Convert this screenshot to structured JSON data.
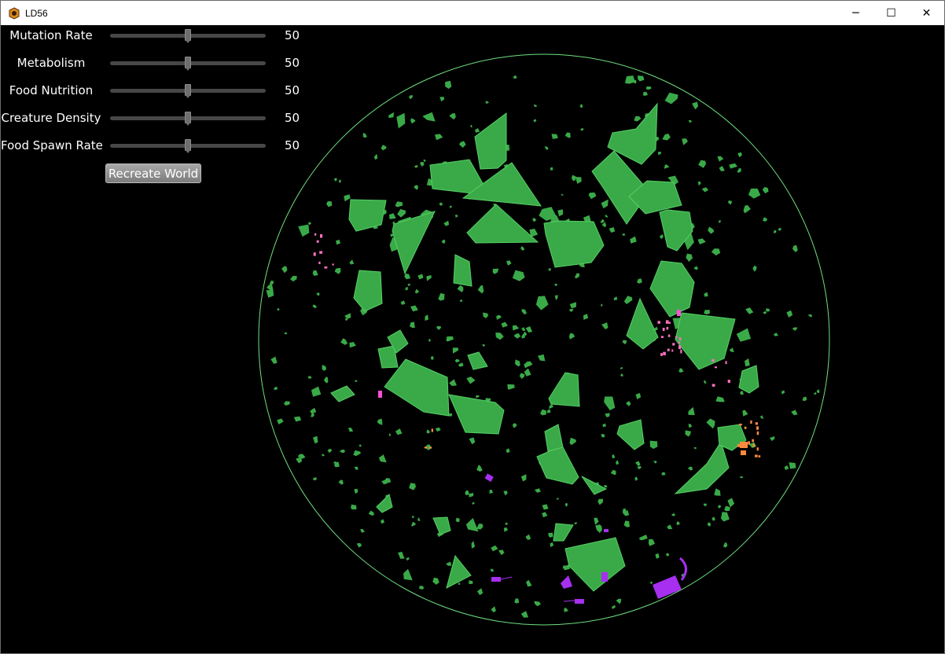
{
  "window": {
    "title": "LD56",
    "controls": {
      "minimize": "─",
      "maximize": "☐",
      "close": "✕"
    }
  },
  "settings": [
    {
      "label": "Mutation Rate",
      "value": "50",
      "level": 0.5
    },
    {
      "label": "Metabolism",
      "value": "50",
      "level": 0.5
    },
    {
      "label": "Food Nutrition",
      "value": "50",
      "level": 0.5
    },
    {
      "label": "Creature Density",
      "value": "50",
      "level": 0.5
    },
    {
      "label": "Food Spawn Rate",
      "value": "50",
      "level": 0.5
    }
  ],
  "recreate_button": {
    "label": "Recreate World"
  },
  "colors": {
    "food": "#3aaa48",
    "food_outline": "#55d065",
    "boundary": "#6fe07f",
    "creature_purple": "#a62ff0",
    "creature_pink": "#ff6fc0",
    "creature_orange": "#ff8a3d",
    "background": "#000000"
  },
  "icons": {
    "app": "app-icon"
  }
}
